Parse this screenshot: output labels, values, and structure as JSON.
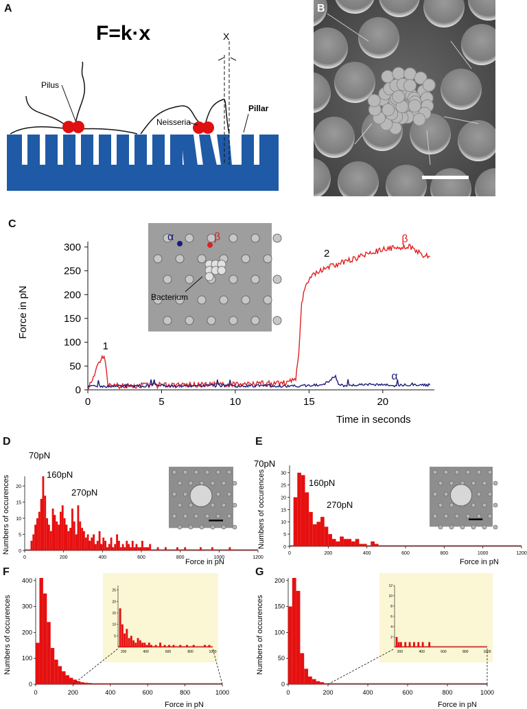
{
  "panel_letters": {
    "a": "A",
    "b": "B",
    "c": "C",
    "d": "D",
    "e": "E",
    "f": "F",
    "g": "G"
  },
  "diagram": {
    "formula": "F=k·x",
    "label_pilus": "Pilus",
    "label_neisseria": "Neisseria",
    "label_pillar": "Pillar",
    "label_x": "X",
    "color_pillar": "#1f5aa6",
    "color_bacterium": "#e01010"
  },
  "micrograph_b": {
    "description_colors": {
      "bg": "#5a5a5a"
    }
  },
  "chart_data": [
    {
      "id": "C",
      "type": "line",
      "ylabel": "Force in pN",
      "xlabel": "Time in seconds",
      "xlim": [
        0,
        23.5
      ],
      "ylim": [
        0,
        320
      ],
      "xticks": [
        0,
        5,
        10,
        15,
        20
      ],
      "yticks": [
        0,
        50,
        100,
        150,
        200,
        250,
        300
      ],
      "annotations": [
        "1",
        "2",
        "α",
        "β",
        "Bacterium"
      ],
      "inset_labels": {
        "alpha": "α",
        "beta": "β",
        "bacterium": "Bacterium"
      },
      "series": [
        {
          "name": "β",
          "color": "#e02020",
          "x": [
            0,
            0.3,
            0.6,
            0.9,
            1.1,
            1.2,
            1.35,
            1.6,
            2,
            4,
            6,
            8,
            10,
            12,
            13.5,
            14.1,
            14.3,
            14.5,
            14.7,
            15,
            15.5,
            16,
            17,
            18,
            19,
            20,
            21,
            22,
            22.6,
            23.2
          ],
          "y": [
            5,
            15,
            45,
            60,
            75,
            55,
            10,
            5,
            8,
            10,
            9,
            11,
            12,
            13,
            15,
            20,
            80,
            180,
            215,
            235,
            245,
            255,
            265,
            275,
            285,
            295,
            300,
            300,
            285,
            280
          ]
        },
        {
          "name": "α",
          "color": "#1a1a7a",
          "x": [
            0,
            2,
            4,
            6,
            8,
            10,
            12,
            14,
            15,
            16,
            16.8,
            17,
            18,
            19,
            20,
            21,
            22,
            23.2
          ],
          "y": [
            7,
            8,
            9,
            8,
            9,
            8,
            9,
            8,
            9,
            10,
            30,
            10,
            9,
            11,
            10,
            9,
            12,
            10
          ]
        }
      ]
    },
    {
      "id": "D",
      "type": "bar",
      "ylabel": "Numbers of occurences",
      "xlabel": "Force in pN",
      "xlim": [
        0,
        1200
      ],
      "ylim": [
        0,
        23
      ],
      "xticks": [
        0,
        200,
        400,
        600,
        800,
        1000,
        1200
      ],
      "yticks": [
        0,
        5,
        10,
        15,
        20
      ],
      "annotations": [
        "70pN",
        "160pN",
        "270pN"
      ],
      "bin_width": 10,
      "bins_start": [
        30,
        40,
        50,
        60,
        70,
        80,
        90,
        100,
        110,
        120,
        130,
        140,
        150,
        160,
        170,
        180,
        190,
        200,
        210,
        220,
        230,
        240,
        250,
        260,
        270,
        280,
        290,
        300,
        310,
        320,
        330,
        340,
        350,
        360,
        370,
        380,
        390,
        400,
        410,
        420,
        430,
        440,
        450,
        460,
        470,
        480,
        490,
        500,
        510,
        520,
        530,
        540,
        550,
        560,
        570,
        580,
        590,
        600,
        610,
        620,
        630,
        640,
        680,
        720,
        780,
        820,
        900,
        960,
        1050
      ],
      "values": [
        3,
        5,
        8,
        10,
        12,
        16,
        23,
        17,
        10,
        8,
        6,
        13,
        11,
        9,
        8,
        12,
        14,
        10,
        8,
        6,
        7,
        13,
        9,
        5,
        14,
        9,
        7,
        6,
        4,
        5,
        3,
        4,
        5,
        2,
        3,
        6,
        2,
        4,
        3,
        1,
        2,
        4,
        1,
        2,
        5,
        3,
        1,
        2,
        1,
        3,
        2,
        1,
        3,
        1,
        2,
        1,
        1,
        3,
        1,
        1,
        1,
        2,
        1,
        1,
        1,
        1,
        1,
        1,
        1
      ],
      "color": "#e61010"
    },
    {
      "id": "E",
      "type": "bar",
      "ylabel": "Numbers of occurences",
      "xlabel": "Force in pN",
      "xlim": [
        0,
        1200
      ],
      "ylim": [
        0,
        33
      ],
      "xticks": [
        0,
        200,
        400,
        600,
        800,
        1000,
        1200
      ],
      "yticks": [
        0,
        5,
        10,
        15,
        20,
        25,
        30
      ],
      "annotations": [
        "70pN",
        "160pN",
        "270pN"
      ],
      "bin_width": 20,
      "bins_start": [
        20,
        40,
        60,
        80,
        100,
        120,
        140,
        160,
        180,
        200,
        220,
        240,
        260,
        280,
        300,
        320,
        340,
        360,
        380,
        400,
        420,
        440
      ],
      "values": [
        20,
        30,
        29,
        22,
        14,
        9,
        10,
        12,
        8,
        5,
        3,
        2,
        4,
        3,
        3,
        2,
        3,
        1,
        1,
        0,
        2,
        1
      ],
      "color": "#e61010"
    },
    {
      "id": "F",
      "type": "bar",
      "ylabel": "Numbers of occurences",
      "xlabel": "Force in pN",
      "xlim": [
        0,
        1000
      ],
      "ylim": [
        0,
        410
      ],
      "xticks": [
        0,
        200,
        400,
        600,
        800,
        1000
      ],
      "yticks": [
        0,
        100,
        200,
        300,
        400
      ],
      "bin_width": 20,
      "bins_start": [
        0,
        20,
        40,
        60,
        80,
        100,
        120,
        140,
        160,
        180,
        200,
        220,
        240,
        260,
        280,
        300,
        320,
        340,
        360,
        380
      ],
      "values": [
        160,
        410,
        350,
        240,
        140,
        95,
        70,
        50,
        35,
        25,
        18,
        12,
        8,
        6,
        5,
        4,
        3,
        3,
        2,
        2
      ],
      "color": "#e61010",
      "inset": {
        "xticks": [
          200,
          400,
          600,
          800,
          1000
        ],
        "yticks": [
          5,
          10,
          15,
          20,
          25
        ],
        "ylim": [
          0,
          27
        ],
        "xlim": [
          150,
          1000
        ],
        "bins_start": [
          160,
          180,
          200,
          220,
          240,
          260,
          280,
          300,
          320,
          340,
          360,
          380,
          400,
          420,
          440,
          480,
          520,
          560,
          600,
          640,
          700,
          760,
          820,
          920,
          960
        ],
        "values": [
          17,
          10,
          6,
          8,
          4,
          5,
          3,
          2,
          4,
          3,
          2,
          2,
          1,
          2,
          1,
          1,
          2,
          1,
          1,
          1,
          1,
          1,
          1,
          1,
          1
        ]
      }
    },
    {
      "id": "G",
      "type": "bar",
      "ylabel": "Numbers of occurences",
      "xlabel": "Force in pN",
      "xlim": [
        0,
        1000
      ],
      "ylim": [
        0,
        205
      ],
      "xticks": [
        0,
        200,
        400,
        600,
        800,
        1000
      ],
      "yticks": [
        0,
        50,
        100,
        150,
        200
      ],
      "bin_width": 20,
      "bins_start": [
        0,
        20,
        40,
        60,
        80,
        100,
        120,
        140,
        160,
        180,
        200
      ],
      "values": [
        150,
        205,
        180,
        60,
        30,
        15,
        10,
        6,
        4,
        2,
        1
      ],
      "color": "#e61010",
      "inset": {
        "xticks": [
          200,
          400,
          600,
          800,
          1000
        ],
        "yticks": [
          2,
          4,
          6,
          8,
          10,
          12
        ],
        "ylim": [
          0,
          12
        ],
        "xlim": [
          150,
          1000
        ],
        "bins_start": [
          160,
          180,
          200,
          240,
          280,
          320,
          360,
          400,
          460
        ],
        "values": [
          2,
          1,
          1,
          1,
          1,
          1,
          1,
          1,
          1
        ]
      }
    }
  ]
}
